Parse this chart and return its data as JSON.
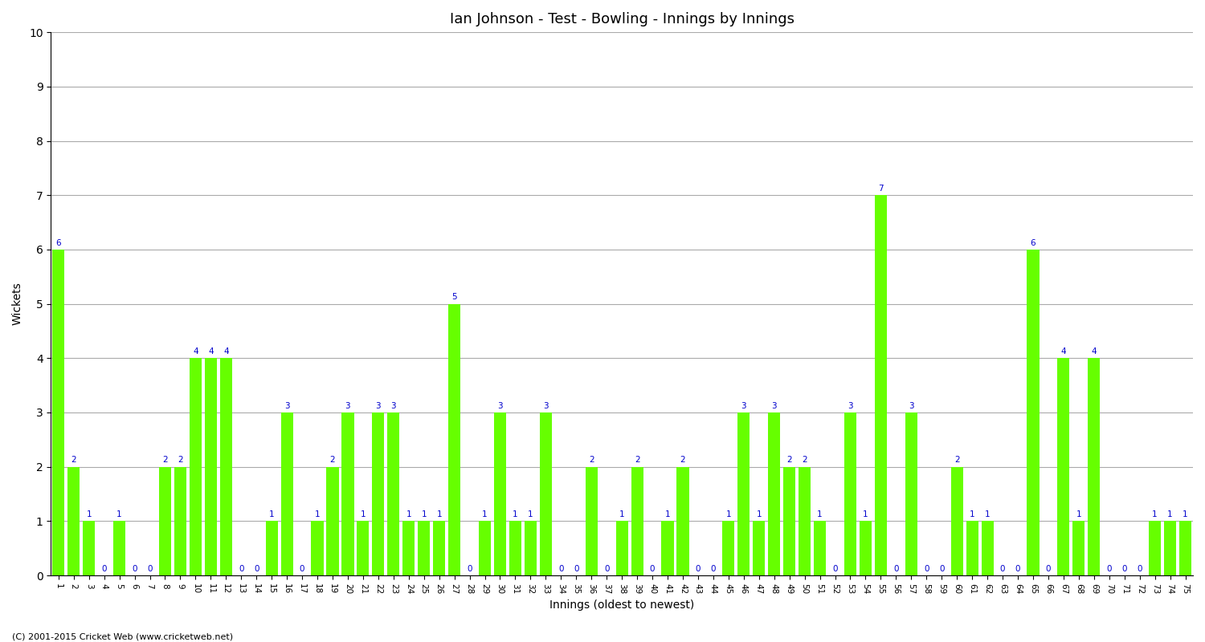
{
  "title": "Ian Johnson - Test - Bowling - Innings by Innings",
  "xlabel": "Innings (oldest to newest)",
  "ylabel": "Wickets",
  "ylim": [
    0,
    10
  ],
  "yticks": [
    0,
    1,
    2,
    3,
    4,
    5,
    6,
    7,
    8,
    9,
    10
  ],
  "bar_color": "#66ff00",
  "label_color": "#0000cc",
  "bg_color": "#ffffff",
  "grid_color": "#aaaaaa",
  "footer": "(C) 2001-2015 Cricket Web (www.cricketweb.net)",
  "innings": [
    1,
    2,
    3,
    4,
    5,
    6,
    7,
    8,
    9,
    10,
    11,
    12,
    13,
    14,
    15,
    16,
    17,
    18,
    19,
    20,
    21,
    22,
    23,
    24,
    25,
    26,
    27,
    28,
    29,
    30,
    31,
    32,
    33,
    34,
    35,
    36,
    37,
    38,
    39,
    40,
    41,
    42,
    43,
    44,
    45,
    46,
    47,
    48,
    49,
    50,
    51,
    52,
    53,
    54,
    55,
    56,
    57,
    58,
    59,
    60,
    61,
    62,
    63,
    64,
    65,
    66,
    67,
    68,
    69,
    70,
    71,
    72,
    73,
    74,
    75
  ],
  "wickets": [
    6,
    2,
    1,
    0,
    1,
    0,
    0,
    2,
    2,
    4,
    4,
    4,
    0,
    0,
    1,
    3,
    0,
    1,
    2,
    3,
    1,
    3,
    3,
    1,
    1,
    1,
    5,
    0,
    1,
    3,
    1,
    1,
    3,
    0,
    0,
    2,
    0,
    1,
    2,
    0,
    1,
    2,
    0,
    0,
    1,
    3,
    1,
    3,
    2,
    2,
    1,
    0,
    3,
    1,
    7,
    0,
    3,
    0,
    0,
    2,
    1,
    1,
    0,
    0,
    6,
    0,
    4,
    1,
    4,
    0,
    0,
    0,
    1,
    1,
    1
  ]
}
